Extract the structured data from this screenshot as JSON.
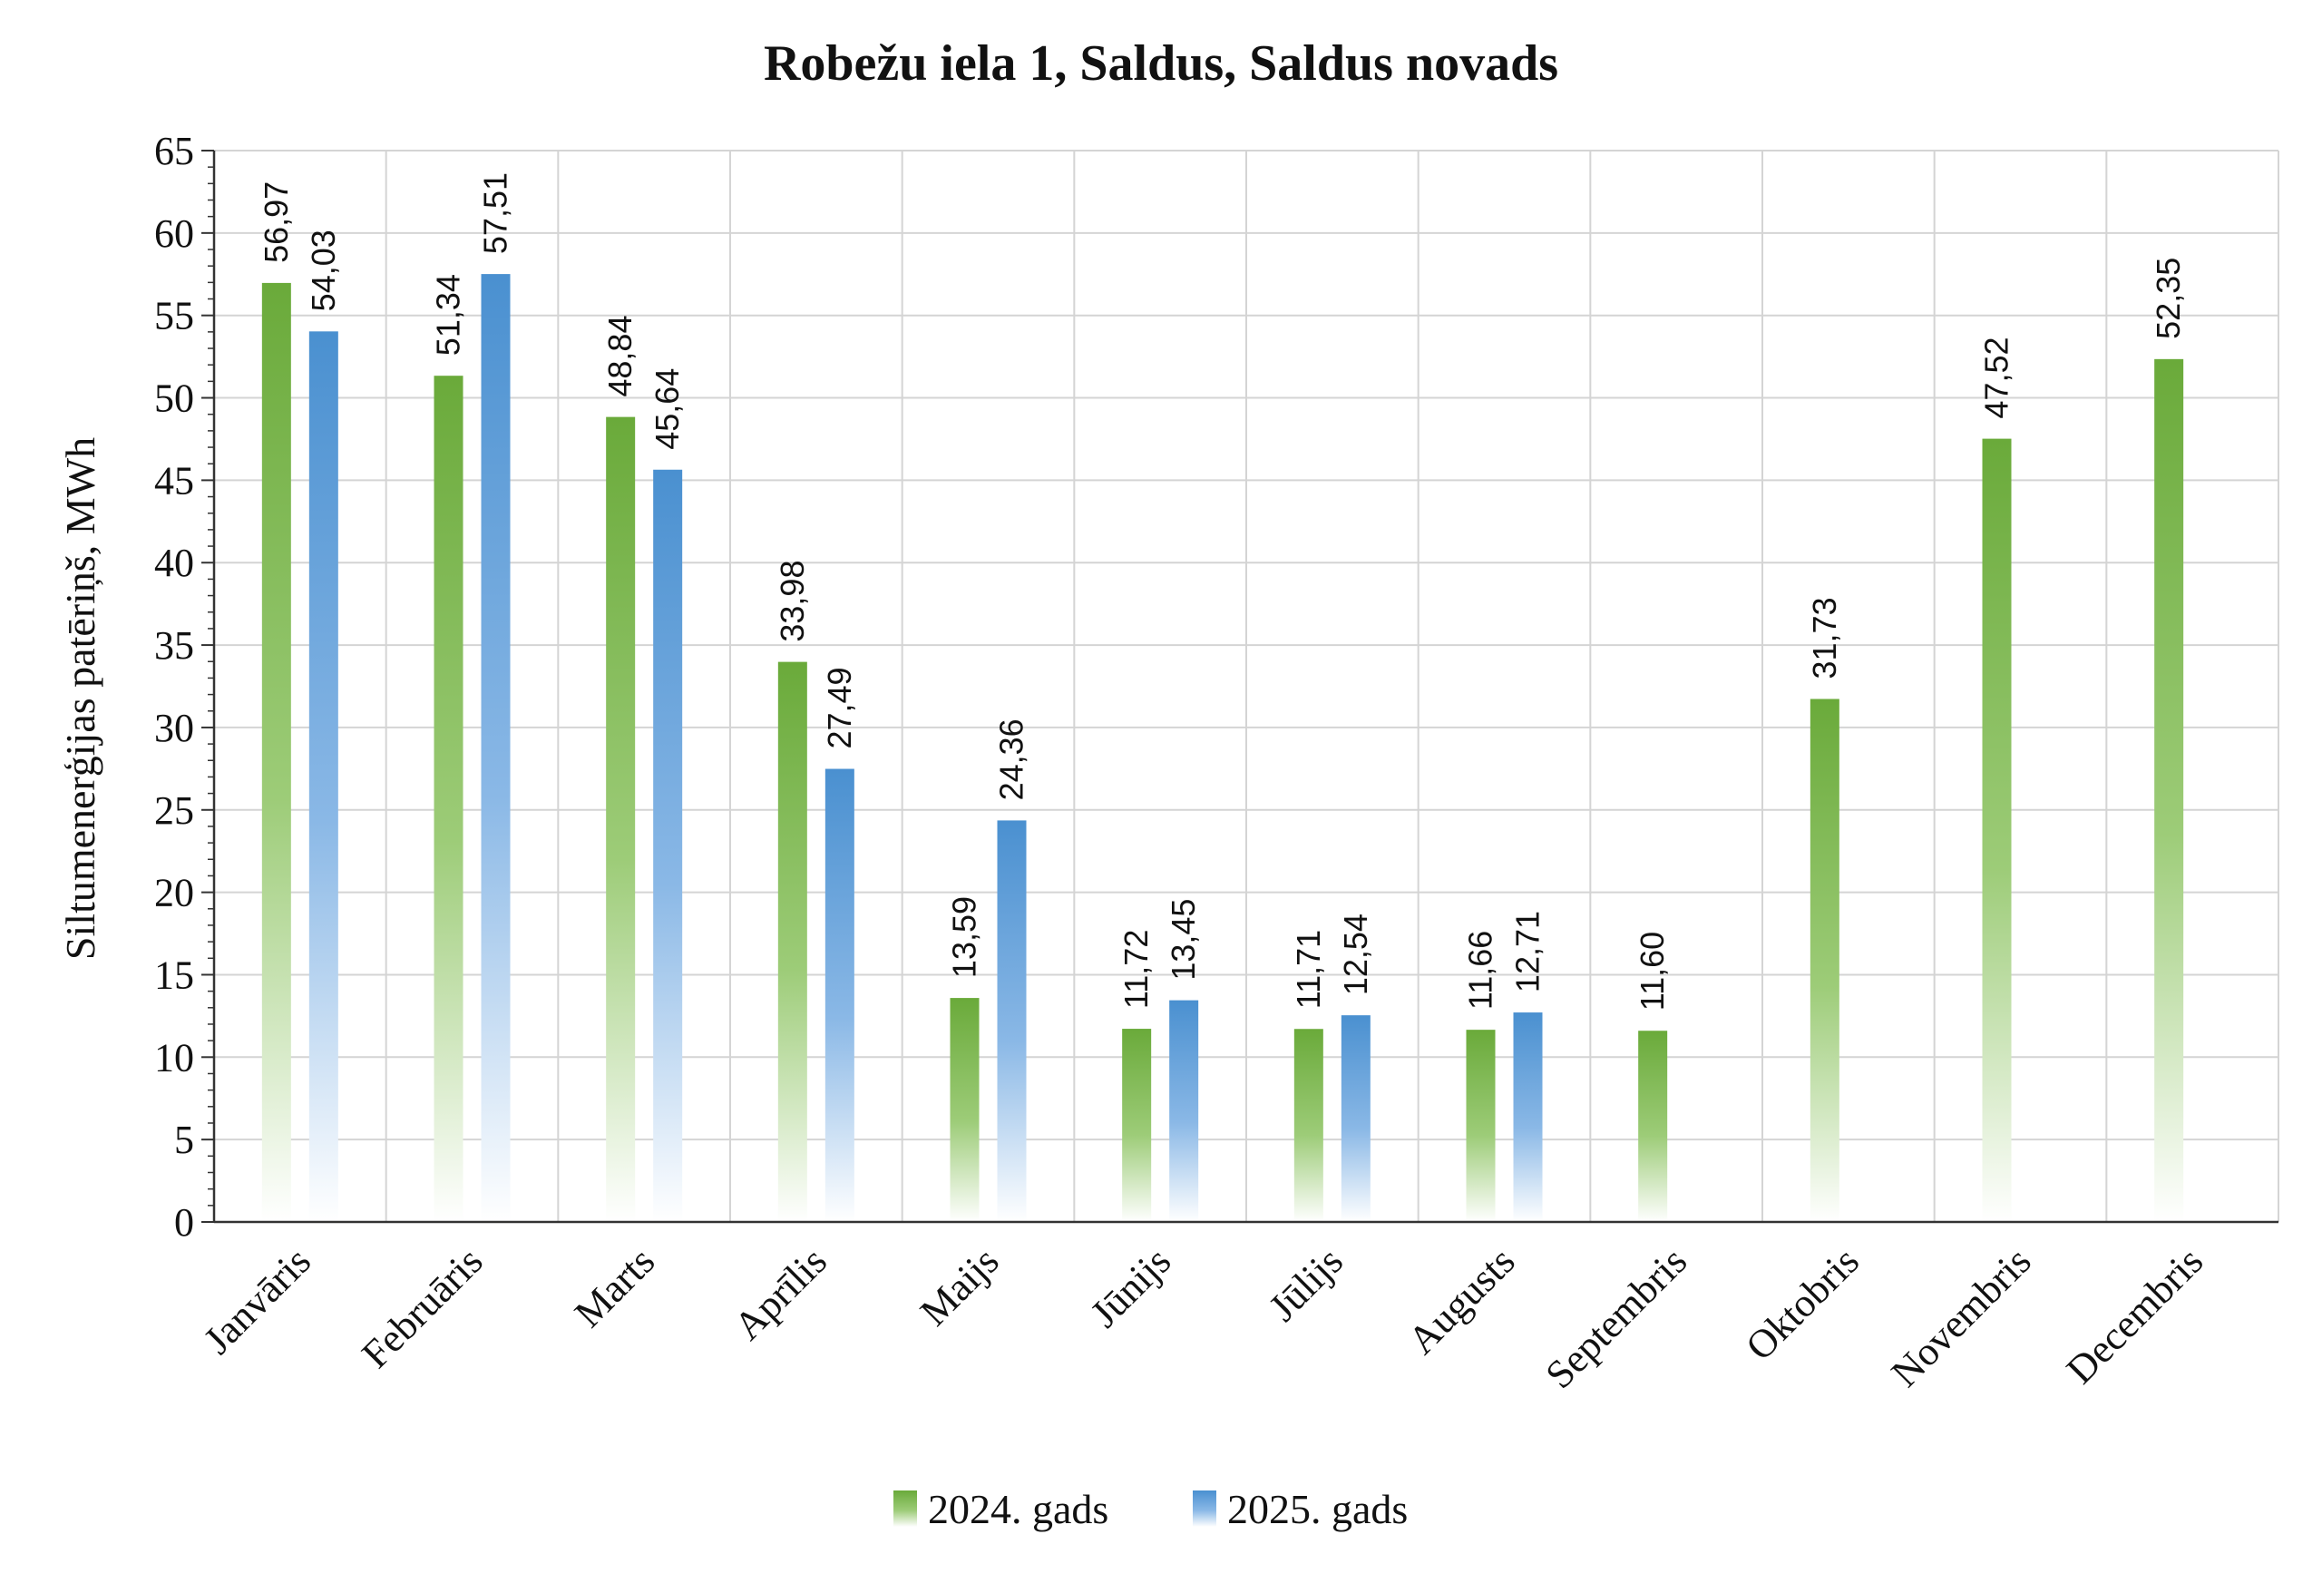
{
  "chart_data": {
    "type": "bar",
    "title": "Robežu iela 1, Saldus, Saldus novads",
    "xlabel": "",
    "ylabel": "Siltumenerģijas patēriņš, MWh",
    "ylim": [
      0,
      65
    ],
    "yticks": [
      0,
      5,
      10,
      15,
      20,
      25,
      30,
      35,
      40,
      45,
      50,
      55,
      60,
      65
    ],
    "grid": true,
    "legend_position": "bottom",
    "categories": [
      "Janvāris",
      "Februāris",
      "Marts",
      "Aprīlis",
      "Maijs",
      "Jūnijs",
      "Jūlijs",
      "Augusts",
      "Septembris",
      "Oktobris",
      "Novembris",
      "Decembris"
    ],
    "series": [
      {
        "name": "2024. gads",
        "color": "#6aaa3a",
        "values": [
          56.97,
          51.34,
          48.84,
          33.98,
          13.59,
          11.72,
          11.71,
          11.66,
          11.6,
          31.73,
          47.52,
          52.35
        ],
        "labels": [
          "56,97",
          "51,34",
          "48,84",
          "33,98",
          "13,59",
          "11,72",
          "11,71",
          "11,66",
          "11,60",
          "31,73",
          "47,52",
          "52,35"
        ]
      },
      {
        "name": "2025. gads",
        "color": "#4a90d0",
        "values": [
          54.03,
          57.51,
          45.64,
          27.49,
          24.36,
          13.45,
          12.54,
          12.71,
          null,
          null,
          null,
          null
        ],
        "labels": [
          "54,03",
          "57,51",
          "45,64",
          "27,49",
          "24,36",
          "13,45",
          "12,54",
          "12,71",
          null,
          null,
          null,
          null
        ]
      }
    ]
  }
}
